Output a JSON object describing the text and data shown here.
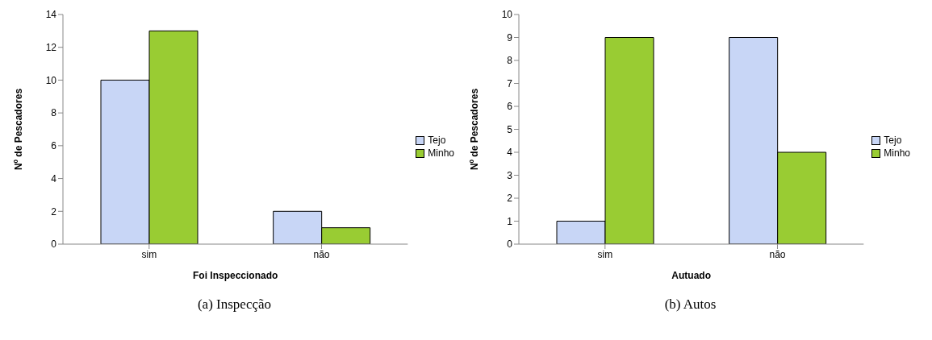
{
  "chart_data": [
    {
      "type": "bar",
      "title": "(a) Inspecção",
      "xlabel": "Foi Inspeccionado",
      "ylabel": "Nº de Pescadores",
      "categories": [
        "sim",
        "não"
      ],
      "series": [
        {
          "name": "Tejo",
          "color": "#c8d6f6",
          "values": [
            10,
            2
          ]
        },
        {
          "name": "Minho",
          "color": "#99cc33",
          "values": [
            13,
            1
          ]
        }
      ],
      "ylim": [
        0,
        14
      ],
      "yticks": [
        0,
        2,
        4,
        6,
        8,
        10,
        12,
        14
      ],
      "grid": false,
      "legend": "right"
    },
    {
      "type": "bar",
      "title": "(b) Autos",
      "xlabel": "Autuado",
      "ylabel": "Nº de Pescadores",
      "categories": [
        "sim",
        "não"
      ],
      "series": [
        {
          "name": "Tejo",
          "color": "#c8d6f6",
          "values": [
            1,
            9
          ]
        },
        {
          "name": "Minho",
          "color": "#99cc33",
          "values": [
            9,
            4
          ]
        }
      ],
      "ylim": [
        0,
        10
      ],
      "yticks": [
        0,
        1,
        2,
        3,
        4,
        5,
        6,
        7,
        8,
        9,
        10
      ],
      "grid": false,
      "legend": "right"
    }
  ]
}
